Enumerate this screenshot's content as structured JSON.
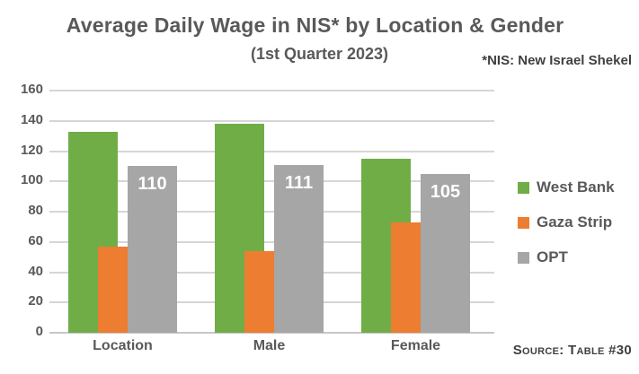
{
  "chart": {
    "title": "Average Daily Wage in NIS* by Location & Gender",
    "subtitle": "(1st Quarter 2023)",
    "note": "*NIS: New Israel Shekel",
    "source": "Source: Table #30"
  },
  "chart_data": {
    "type": "bar",
    "title": "Average Daily Wage in NIS* by Location & Gender",
    "subtitle": "(1st Quarter 2023)",
    "categories": [
      "Location",
      "Male",
      "Female"
    ],
    "series": [
      {
        "name": "West Bank",
        "color": "#70AD47",
        "values": [
          133,
          138,
          115
        ],
        "data_labels": false
      },
      {
        "name": "Gaza Strip",
        "color": "#ED7D31",
        "values": [
          57,
          54,
          73
        ],
        "data_labels": false
      },
      {
        "name": "OPT",
        "color": "#A6A6A6",
        "values": [
          110,
          111,
          105
        ],
        "data_labels": true
      }
    ],
    "ylim": [
      0,
      160
    ],
    "ytick_step": 20,
    "grid": true,
    "gridline_color": "#d6d6d6",
    "data_label_color": "#ffffff",
    "text_color": "#595959",
    "legend_position": "right",
    "xlabel": "",
    "ylabel": ""
  }
}
